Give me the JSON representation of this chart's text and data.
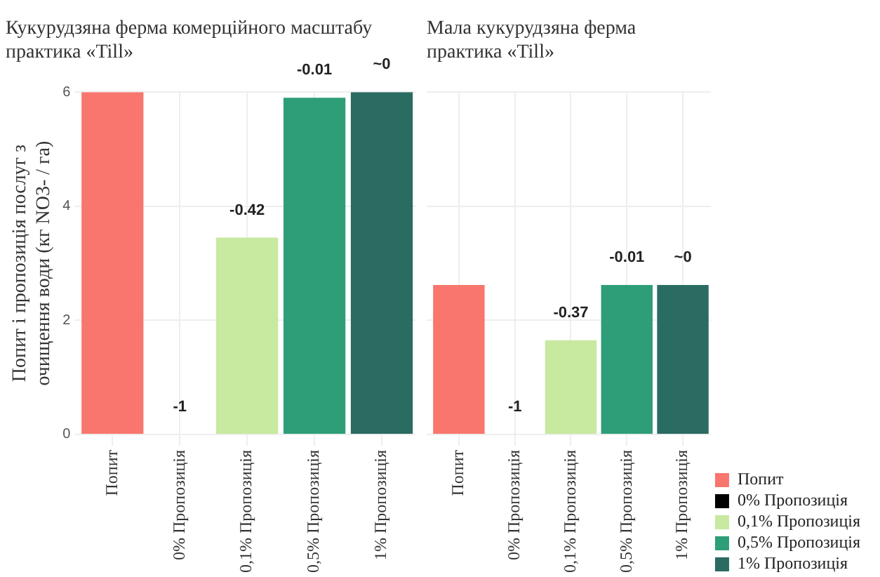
{
  "chart_data": [
    {
      "type": "bar",
      "stacked": true,
      "title": "Кукурудзяна ферма комерційного масштабу практика «Till»",
      "ylabel": "Попит і пропозиція послуг з очищення води (кг NO3- / га)",
      "categories": [
        "Попит",
        "0% Пропозиція",
        "0,1% Пропозиція",
        "0,5% Пропозиція",
        "1% Пропозиція"
      ],
      "series": [
        {
          "color": "#f8766d",
          "values": [
            6.0,
            null,
            null,
            null,
            null
          ]
        },
        {
          "color": "#000000",
          "values": [
            null,
            0,
            null,
            null,
            null
          ]
        },
        {
          "color": "#c7e9a0",
          "values": [
            null,
            null,
            3.45,
            null,
            null
          ]
        },
        {
          "color": "#2e9e78",
          "values": [
            null,
            null,
            null,
            5.9,
            null
          ]
        },
        {
          "color": "#2a6b62",
          "values": [
            null,
            null,
            null,
            null,
            6.0
          ]
        }
      ],
      "annotations": [
        {
          "text": "-1",
          "x": "0% Пропозиція",
          "y": 0
        },
        {
          "text": "-0.42",
          "x": "0,1% Пропозиція",
          "y": 3.45
        },
        {
          "text": "-0.01",
          "x": "0,5% Пропозиція",
          "y": 5.9
        },
        {
          "text": "~0",
          "x": "1% Пропозиція",
          "y": 6.0
        }
      ],
      "ylim": [
        0,
        6
      ],
      "yticks": [
        0,
        2,
        4,
        6
      ],
      "grid": true
    },
    {
      "type": "bar",
      "stacked": true,
      "title": "Мала кукурудзяна ферма практика «Till»",
      "categories": [
        "Попит",
        "0% Пропозиція",
        "0,1% Пропозиція",
        "0,5% Пропозиція",
        "1% Пропозиція"
      ],
      "series": [
        {
          "name": "Попит",
          "color": "#f8766d",
          "values": [
            2.62,
            null,
            null,
            null,
            null
          ]
        },
        {
          "name": "0% Пропозиція",
          "color": "#000000",
          "values": [
            null,
            0,
            null,
            null,
            null
          ]
        },
        {
          "name": "0,1% Пропозиція",
          "color": "#c7e9a0",
          "values": [
            null,
            null,
            1.65,
            null,
            null
          ]
        },
        {
          "name": "0,5% Пропозиція",
          "color": "#2e9e78",
          "values": [
            null,
            null,
            null,
            2.62,
            null
          ]
        },
        {
          "name": "1% Пропозиція",
          "color": "#2a6b62",
          "values": [
            null,
            null,
            null,
            null,
            2.62
          ]
        }
      ],
      "annotations": [
        {
          "text": "-1",
          "x": "0% Пропозиція",
          "y": 0
        },
        {
          "text": "-0.37",
          "x": "0,1% Пропозиція",
          "y": 1.65
        },
        {
          "text": "-0.01",
          "x": "0,5% Пропозиція",
          "y": 2.62
        },
        {
          "text": "~0",
          "x": "1% Пропозиція",
          "y": 2.62
        }
      ],
      "ylim": [
        0,
        6
      ],
      "yticks": [
        0,
        2,
        4,
        6
      ],
      "grid": true,
      "legend": "right",
      "tick_labels": "x"
    }
  ]
}
